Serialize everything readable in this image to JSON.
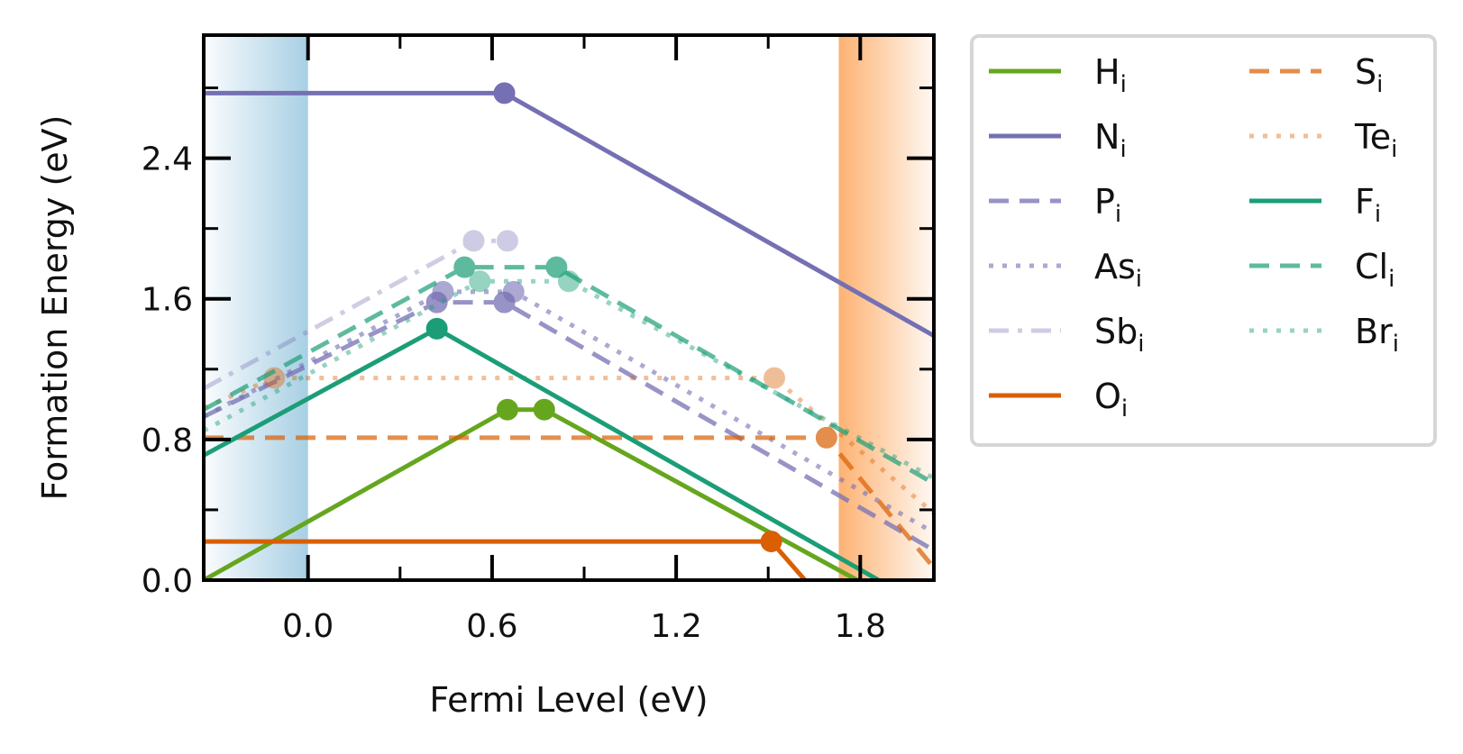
{
  "chart_data": {
    "type": "line",
    "xlabel": "Fermi Level (eV)",
    "ylabel": "Formation Energy (eV)",
    "xlim": [
      -0.34,
      2.04
    ],
    "ylim": [
      0.0,
      3.1
    ],
    "xticks": [
      0.0,
      0.6,
      1.2,
      1.8
    ],
    "xtick_labels": [
      "0.0",
      "0.6",
      "1.2",
      "1.8"
    ],
    "xminor": [
      0.3,
      0.9,
      1.5
    ],
    "yticks": [
      0.0,
      0.8,
      1.6,
      2.4
    ],
    "ytick_labels": [
      "0.0",
      "0.8",
      "1.6",
      "2.4"
    ],
    "yminor": [
      0.4,
      1.2,
      2.0,
      2.8
    ],
    "grid": false,
    "legend_position": "outside-right",
    "shaded_regions": [
      {
        "name": "valence-band",
        "x": [
          -0.34,
          0.0
        ],
        "color": "#9ecae1"
      },
      {
        "name": "conduction-band",
        "x": [
          1.73,
          2.04
        ],
        "color": "#fdae6b"
      }
    ],
    "series": [
      {
        "name": "H",
        "sub": "i",
        "color": "#66a61e",
        "dash": "solid",
        "opacity": 1,
        "x": [
          -0.34,
          0.65,
          0.77,
          1.79
        ],
        "y": [
          0.0,
          0.97,
          0.97,
          0.0
        ],
        "markers": [
          0.65,
          0.77
        ]
      },
      {
        "name": "N",
        "sub": "i",
        "color": "#7570b3",
        "dash": "solid",
        "opacity": 1,
        "x": [
          -0.34,
          0.64,
          2.04
        ],
        "y": [
          2.77,
          2.77,
          1.39
        ],
        "markers": [
          0.64
        ]
      },
      {
        "name": "P",
        "sub": "i",
        "color": "#7570b3",
        "dash": "dashed",
        "opacity": 0.75,
        "x": [
          -0.34,
          0.42,
          0.64,
          2.04
        ],
        "y": [
          0.93,
          1.58,
          1.58,
          0.17
        ],
        "markers": [
          0.42,
          0.64
        ]
      },
      {
        "name": "As",
        "sub": "i",
        "color": "#7570b3",
        "dash": "dotted",
        "opacity": 0.6,
        "x": [
          -0.34,
          0.44,
          0.67,
          2.04
        ],
        "y": [
          0.93,
          1.64,
          1.64,
          0.27
        ],
        "markers": [
          0.44,
          0.67
        ]
      },
      {
        "name": "Sb",
        "sub": "i",
        "color": "#7570b3",
        "dash": "dashdot",
        "opacity": 0.35,
        "x": [
          -0.34,
          0.54,
          0.65
        ],
        "y": [
          1.09,
          1.93,
          1.93
        ],
        "markers": [
          0.54,
          0.65
        ]
      },
      {
        "name": "O",
        "sub": "i",
        "color": "#d95f02",
        "dash": "solid",
        "opacity": 1,
        "x": [
          -0.34,
          1.51,
          1.62
        ],
        "y": [
          0.22,
          0.22,
          0.0
        ],
        "markers": [
          1.51
        ]
      },
      {
        "name": "S",
        "sub": "i",
        "color": "#d95f02",
        "dash": "dashed",
        "opacity": 0.7,
        "x": [
          -0.34,
          1.69,
          2.04
        ],
        "y": [
          0.81,
          0.81,
          0.07
        ],
        "markers": [
          1.69
        ]
      },
      {
        "name": "Te",
        "sub": "i",
        "color": "#d95f02",
        "dash": "dotted",
        "opacity": 0.4,
        "x": [
          -0.34,
          -0.11,
          1.52,
          2.04
        ],
        "y": [
          0.98,
          1.15,
          1.15,
          0.38
        ],
        "markers": [
          -0.11,
          1.52
        ]
      },
      {
        "name": "F",
        "sub": "i",
        "color": "#1b9e77",
        "dash": "solid",
        "opacity": 1,
        "x": [
          -0.34,
          0.42,
          1.86
        ],
        "y": [
          0.71,
          1.43,
          0.0
        ],
        "markers": [
          0.42
        ]
      },
      {
        "name": "Cl",
        "sub": "i",
        "color": "#1b9e77",
        "dash": "dashed",
        "opacity": 0.7,
        "x": [
          -0.34,
          0.51,
          0.81,
          2.04
        ],
        "y": [
          0.97,
          1.78,
          1.78,
          0.55
        ],
        "markers": [
          0.51,
          0.81
        ]
      },
      {
        "name": "Br",
        "sub": "i",
        "color": "#1b9e77",
        "dash": "dotted",
        "opacity": 0.45,
        "x": [
          -0.34,
          0.56,
          0.85,
          2.04
        ],
        "y": [
          0.85,
          1.7,
          1.7,
          0.58
        ],
        "markers": [
          0.56,
          0.85
        ]
      }
    ]
  }
}
